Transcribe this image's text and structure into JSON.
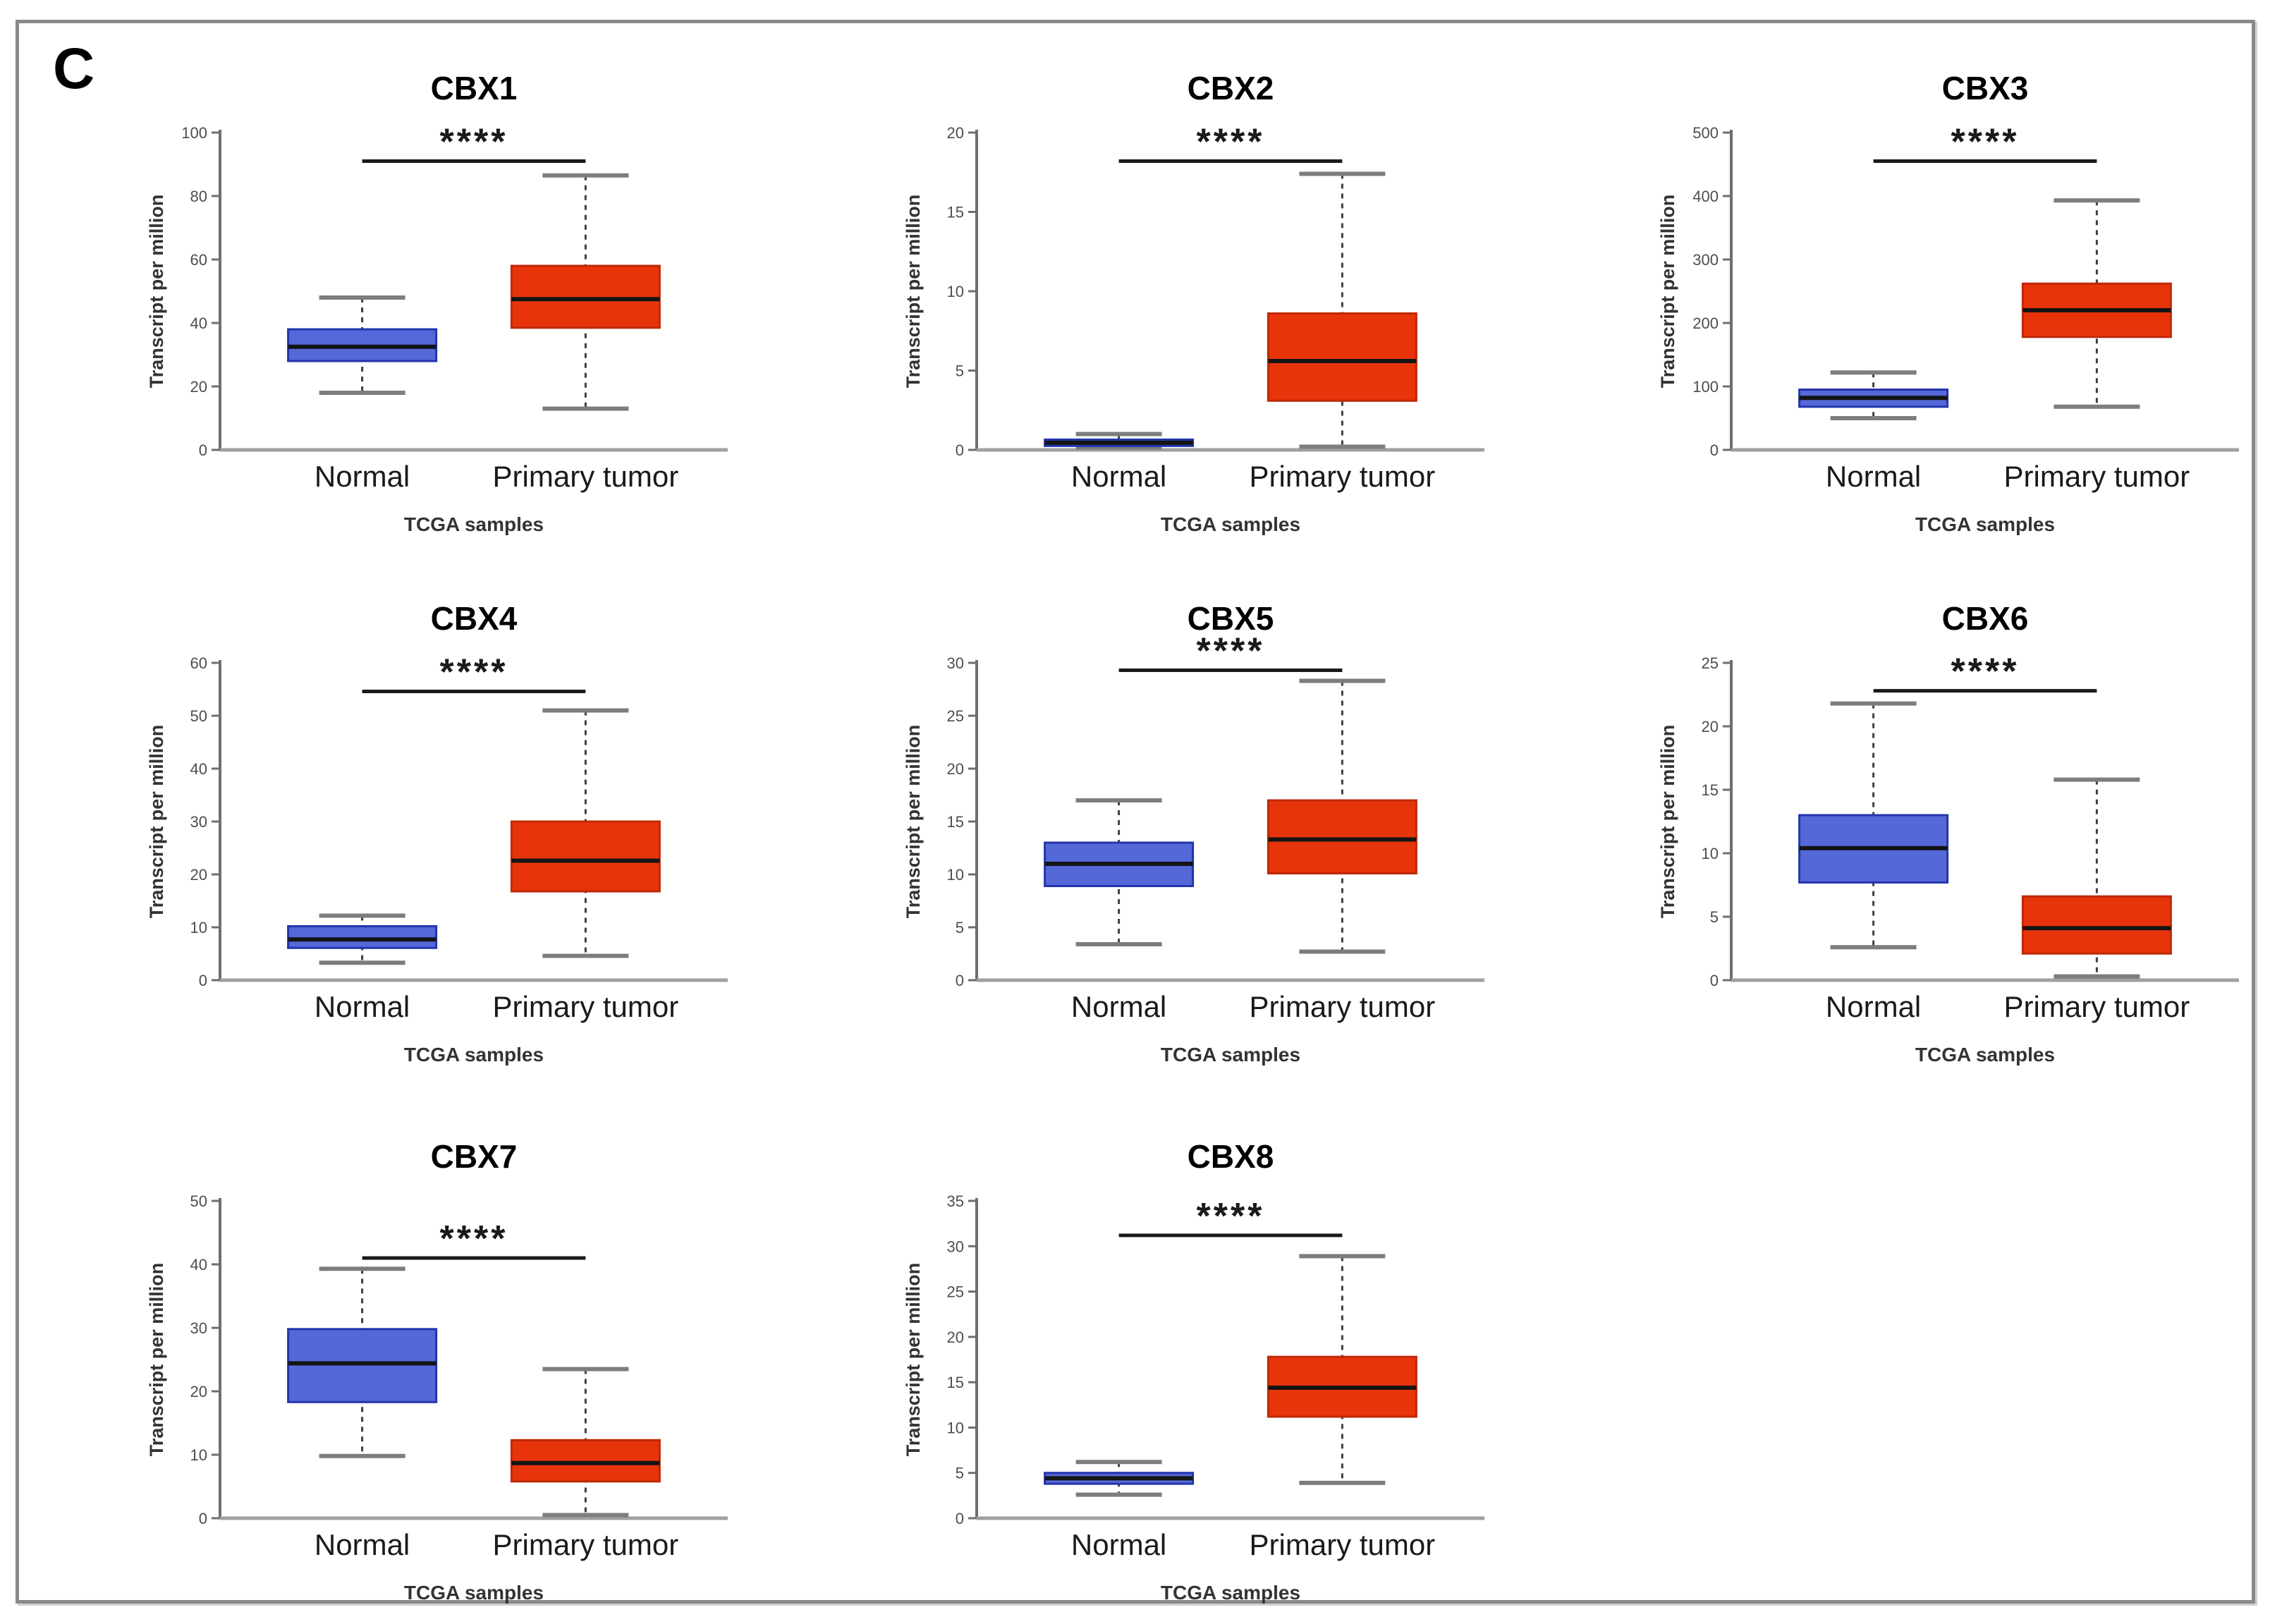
{
  "figure": {
    "panel_label": "C",
    "y_axis_label": "Transcript per million",
    "x_axis_label": "TCGA samples",
    "categories": [
      "Normal",
      "Primary tumor"
    ],
    "significance_label": "****",
    "colors": {
      "normal_box_fill": "#5468d8",
      "normal_box_border": "#2334ad",
      "tumor_box_fill": "#e8340b",
      "tumor_box_border": "#bf2806",
      "median_line": "#141414",
      "whisker_line": "#3f3f3f",
      "whisker_cap": "#7d7d7d",
      "y_axis": "#6e6e6e",
      "x_axis": "#a0a0a0",
      "tick_text": "#4d4d4d",
      "title_text": "#000000",
      "category_text": "#1a1a1a",
      "significance": "#1a1a1a",
      "frame_border": "#8a8a8a"
    }
  },
  "chart_data": [
    {
      "type": "box",
      "title": "CBX1",
      "xlabel": "TCGA samples",
      "ylabel": "Transcript per million",
      "ylim": [
        0,
        100
      ],
      "ytick_step": 20,
      "significance": "****",
      "significance_y": 91,
      "series": [
        {
          "name": "Normal",
          "whisker_low": 18,
          "q1": 28,
          "median": 32.5,
          "q3": 38,
          "whisker_high": 48
        },
        {
          "name": "Primary tumor",
          "whisker_low": 13,
          "q1": 38.5,
          "median": 47.5,
          "q3": 58,
          "whisker_high": 86.5
        }
      ]
    },
    {
      "type": "box",
      "title": "CBX2",
      "xlabel": "TCGA samples",
      "ylabel": "Transcript per million",
      "ylim": [
        0,
        20
      ],
      "ytick_step": 5,
      "significance": "****",
      "significance_y": 18.2,
      "series": [
        {
          "name": "Normal",
          "whisker_low": 0.15,
          "q1": 0.25,
          "median": 0.45,
          "q3": 0.65,
          "whisker_high": 1.0
        },
        {
          "name": "Primary tumor",
          "whisker_low": 0.2,
          "q1": 3.1,
          "median": 5.6,
          "q3": 8.6,
          "whisker_high": 17.4
        }
      ]
    },
    {
      "type": "box",
      "title": "CBX3",
      "xlabel": "TCGA samples",
      "ylabel": "Transcript per million",
      "ylim": [
        0,
        500
      ],
      "ytick_step": 100,
      "significance": "****",
      "significance_y": 455,
      "series": [
        {
          "name": "Normal",
          "whisker_low": 50,
          "q1": 68,
          "median": 82,
          "q3": 95,
          "whisker_high": 122
        },
        {
          "name": "Primary tumor",
          "whisker_low": 68,
          "q1": 178,
          "median": 220,
          "q3": 262,
          "whisker_high": 393
        }
      ]
    },
    {
      "type": "box",
      "title": "CBX4",
      "xlabel": "TCGA samples",
      "ylabel": "Transcript per million",
      "ylim": [
        0,
        60
      ],
      "ytick_step": 10,
      "significance": "****",
      "significance_y": 54.6,
      "series": [
        {
          "name": "Normal",
          "whisker_low": 3.3,
          "q1": 6.1,
          "median": 7.7,
          "q3": 10.2,
          "whisker_high": 12.2
        },
        {
          "name": "Primary tumor",
          "whisker_low": 4.6,
          "q1": 16.8,
          "median": 22.6,
          "q3": 30,
          "whisker_high": 51
        }
      ]
    },
    {
      "type": "box",
      "title": "CBX5",
      "xlabel": "TCGA samples",
      "ylabel": "Transcript per million",
      "ylim": [
        0,
        30
      ],
      "ytick_step": 5,
      "significance": "****",
      "significance_y": 29.3,
      "series": [
        {
          "name": "Normal",
          "whisker_low": 3.4,
          "q1": 8.9,
          "median": 11,
          "q3": 13,
          "whisker_high": 17
        },
        {
          "name": "Primary tumor",
          "whisker_low": 2.7,
          "q1": 10.1,
          "median": 13.3,
          "q3": 17,
          "whisker_high": 28.3
        }
      ]
    },
    {
      "type": "box",
      "title": "CBX6",
      "xlabel": "TCGA samples",
      "ylabel": "Transcript per million",
      "ylim": [
        0,
        25
      ],
      "ytick_step": 5,
      "significance": "****",
      "significance_y": 22.8,
      "series": [
        {
          "name": "Normal",
          "whisker_low": 2.6,
          "q1": 7.7,
          "median": 10.4,
          "q3": 13,
          "whisker_high": 21.8
        },
        {
          "name": "Primary tumor",
          "whisker_low": 0.3,
          "q1": 2.1,
          "median": 4.1,
          "q3": 6.6,
          "whisker_high": 15.8
        }
      ]
    },
    {
      "type": "box",
      "title": "CBX7",
      "xlabel": "TCGA samples",
      "ylabel": "Transcript per million",
      "ylim": [
        0,
        50
      ],
      "ytick_step": 10,
      "significance": "****",
      "significance_y": 41,
      "series": [
        {
          "name": "Normal",
          "whisker_low": 9.8,
          "q1": 18.3,
          "median": 24.4,
          "q3": 29.8,
          "whisker_high": 39.3
        },
        {
          "name": "Primary tumor",
          "whisker_low": 0.5,
          "q1": 5.8,
          "median": 8.7,
          "q3": 12.3,
          "whisker_high": 23.5
        }
      ]
    },
    {
      "type": "box",
      "title": "CBX8",
      "xlabel": "TCGA samples",
      "ylabel": "Transcript per million",
      "ylim": [
        0,
        35
      ],
      "ytick_step": 5,
      "significance": "****",
      "significance_y": 31.2,
      "series": [
        {
          "name": "Normal",
          "whisker_low": 2.6,
          "q1": 3.8,
          "median": 4.4,
          "q3": 5.0,
          "whisker_high": 6.2
        },
        {
          "name": "Primary tumor",
          "whisker_low": 3.9,
          "q1": 11.2,
          "median": 14.4,
          "q3": 17.8,
          "whisker_high": 28.9
        }
      ]
    }
  ]
}
